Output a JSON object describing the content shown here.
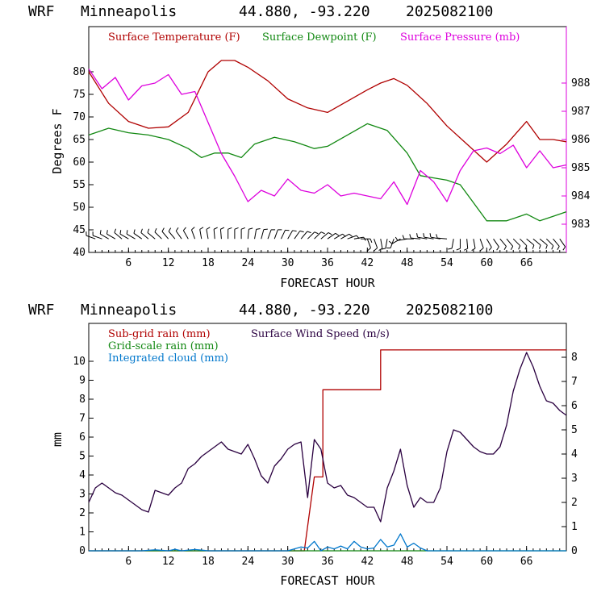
{
  "panel1": {
    "header": {
      "model": "WRF",
      "location": "Minneapolis",
      "coords": "44.880, -93.220",
      "run": "2025082100"
    }
  },
  "panel2": {
    "header": {
      "model": "WRF",
      "location": "Minneapolis",
      "coords": "44.880, -93.220",
      "run": "2025082100"
    }
  },
  "colors": {
    "temperature": "#b00000",
    "dewpoint": "#118811",
    "pressure": "#dd00dd",
    "subgrid": "#b00000",
    "gridscale": "#118811",
    "cloud": "#0077cc",
    "wind": "#2a0040"
  },
  "chart_data": [
    {
      "type": "line",
      "xlabel": "FORECAST HOUR",
      "ylabel": "Degrees F",
      "xlim": [
        0,
        72
      ],
      "ylim": [
        40,
        90
      ],
      "ylim_right": [
        982,
        990
      ],
      "x_ticks": [
        "6",
        "12",
        "18",
        "24",
        "30",
        "36",
        "42",
        "48",
        "54",
        "60",
        "66"
      ],
      "y_ticks": [
        "40",
        "45",
        "50",
        "55",
        "60",
        "65",
        "70",
        "75",
        "80"
      ],
      "y_ticks_right": [
        "983",
        "984",
        "985",
        "986",
        "987",
        "988"
      ],
      "series": [
        {
          "name": "Surface Temperature (F)",
          "axis": "left",
          "color": "#b00000",
          "x": [
            0,
            3,
            6,
            9,
            12,
            15,
            18,
            20,
            22,
            24,
            27,
            30,
            33,
            36,
            39,
            42,
            44,
            46,
            48,
            51,
            54,
            57,
            60,
            63,
            66,
            68,
            70,
            72
          ],
          "y": [
            80,
            73,
            69,
            67.5,
            67.8,
            71,
            80,
            82.5,
            82.5,
            81,
            78,
            74,
            72,
            71,
            73.5,
            76,
            77.5,
            78.5,
            77,
            73,
            68,
            64,
            60,
            64,
            69,
            65,
            65,
            64.5
          ]
        },
        {
          "name": "Surface Dewpoint (F)",
          "axis": "left",
          "color": "#118811",
          "x": [
            0,
            3,
            6,
            9,
            12,
            15,
            17,
            19,
            21,
            23,
            25,
            28,
            31,
            34,
            36,
            39,
            42,
            45,
            48,
            50,
            52,
            54,
            56,
            58,
            60,
            63,
            66,
            68,
            70,
            72
          ],
          "y": [
            66,
            67.5,
            66.5,
            66,
            65,
            63,
            61,
            62,
            62,
            61,
            64,
            65.5,
            64.5,
            63,
            63.5,
            66,
            68.5,
            67,
            62,
            57,
            56.5,
            56,
            55,
            51,
            47,
            47,
            48.5,
            47,
            48,
            49
          ]
        },
        {
          "name": "Surface Pressure (mb)",
          "axis": "right",
          "color": "#dd00dd",
          "x": [
            0,
            2,
            4,
            6,
            8,
            10,
            12,
            14,
            16,
            18,
            20,
            22,
            24,
            26,
            28,
            30,
            32,
            34,
            36,
            38,
            40,
            42,
            44,
            46,
            48,
            50,
            52,
            54,
            56,
            58,
            60,
            62,
            64,
            66,
            68,
            70,
            72
          ],
          "y": [
            988.5,
            987.8,
            988.2,
            987.4,
            987.9,
            988,
            988.3,
            987.6,
            987.7,
            986.6,
            985.5,
            984.7,
            983.8,
            984.2,
            984.0,
            984.6,
            984.2,
            984.1,
            984.4,
            984.0,
            984.1,
            984.0,
            983.9,
            984.5,
            983.7,
            984.9,
            984.5,
            983.8,
            984.9,
            985.6,
            985.7,
            985.5,
            985.8,
            985.0,
            985.6,
            985.0,
            985.1
          ]
        },
        {
          "name": "Surface Wind Barbs",
          "axis": "left",
          "color": "#000000",
          "x": [
            1,
            2,
            3,
            4,
            5,
            6,
            7,
            8,
            9,
            10,
            11,
            12,
            13,
            14,
            15,
            16,
            17,
            18,
            19,
            20,
            21,
            22,
            23,
            24,
            25,
            26,
            27,
            28,
            29,
            30,
            31,
            32,
            33,
            34,
            35,
            36,
            37,
            38,
            39,
            40,
            41,
            42,
            43,
            44,
            45,
            46,
            47,
            48,
            49,
            50,
            51,
            52,
            53,
            54,
            55,
            56,
            57,
            58,
            59,
            60,
            61,
            62,
            63,
            64,
            65,
            66,
            67,
            68,
            69,
            70,
            71
          ],
          "y": [
            43,
            43,
            43,
            43,
            43,
            43,
            43,
            43,
            43,
            43,
            43,
            43,
            43,
            43,
            43,
            43,
            43,
            43,
            43,
            43,
            43,
            43,
            43,
            43,
            43,
            43,
            43,
            43,
            43,
            43,
            43,
            43,
            43,
            43,
            43,
            43,
            43,
            43,
            43,
            43,
            43,
            43,
            43,
            43,
            43,
            43,
            43,
            43,
            43,
            43,
            43,
            43,
            43,
            43,
            43,
            43,
            43,
            43,
            43,
            43,
            43,
            43,
            43,
            43,
            43,
            43,
            43,
            43,
            43,
            43,
            43
          ],
          "direction_deg": [
            290,
            290,
            300,
            300,
            310,
            300,
            300,
            305,
            310,
            310,
            315,
            320,
            320,
            325,
            330,
            340,
            350,
            350,
            355,
            355,
            0,
            0,
            0,
            5,
            10,
            15,
            20,
            20,
            25,
            30,
            35,
            40,
            45,
            45,
            50,
            55,
            60,
            60,
            70,
            80,
            90,
            160,
            160,
            170,
            190,
            200,
            240,
            260,
            270,
            275,
            280,
            280,
            280,
            275,
            190,
            180,
            175,
            170,
            160,
            150,
            145,
            140,
            140,
            135,
            135,
            130,
            130,
            130,
            135,
            140,
            145
          ]
        }
      ]
    },
    {
      "type": "line",
      "xlabel": "FORECAST HOUR",
      "ylabel": "mm",
      "xlim": [
        0,
        72
      ],
      "ylim": [
        0,
        12
      ],
      "ylim_right": [
        0,
        9.4
      ],
      "x_ticks": [
        "6",
        "12",
        "18",
        "24",
        "30",
        "36",
        "42",
        "48",
        "54",
        "60",
        "66"
      ],
      "y_ticks": [
        "0",
        "1",
        "2",
        "3",
        "4",
        "5",
        "6",
        "7",
        "8",
        "9",
        "10"
      ],
      "y_ticks_right": [
        "0",
        "1",
        "2",
        "3",
        "4",
        "5",
        "6",
        "7",
        "8"
      ],
      "series": [
        {
          "name": "Sub-grid rain (mm)",
          "axis": "left",
          "color": "#b00000",
          "x": [
            0,
            32.5,
            34,
            34,
            35.3,
            35.3,
            44,
            44,
            72
          ],
          "y": [
            0,
            0,
            3.9,
            3.9,
            3.9,
            8.5,
            8.5,
            10.6,
            10.6
          ]
        },
        {
          "name": "Grid-scale rain (mm)",
          "axis": "left",
          "color": "#118811",
          "x": [
            0,
            72
          ],
          "y": [
            0,
            0
          ]
        },
        {
          "name": "Integrated cloud (mm)",
          "axis": "left",
          "color": "#0077cc",
          "x": [
            0,
            8,
            10,
            12,
            13,
            14,
            16,
            18,
            20,
            30,
            32,
            33,
            34,
            35,
            36,
            37,
            38,
            39,
            40,
            41,
            42,
            43,
            44,
            45,
            46,
            47,
            48,
            49,
            50,
            51,
            72
          ],
          "y": [
            0,
            0,
            0.05,
            0,
            0.08,
            0,
            0.07,
            0,
            0,
            0,
            0.2,
            0.15,
            0.5,
            0,
            0.2,
            0.1,
            0.25,
            0.1,
            0.5,
            0.2,
            0.1,
            0.15,
            0.6,
            0.2,
            0.3,
            0.9,
            0.2,
            0.4,
            0.15,
            0,
            0
          ]
        },
        {
          "name": "Surface Wind Speed (m/s)",
          "axis": "right",
          "color": "#2a0040",
          "x": [
            0,
            1,
            2,
            3,
            4,
            5,
            6,
            7,
            8,
            9,
            10,
            11,
            12,
            13,
            14,
            15,
            16,
            17,
            18,
            19,
            20,
            21,
            22,
            23,
            24,
            25,
            26,
            27,
            28,
            29,
            30,
            31,
            32,
            33,
            34,
            35,
            36,
            37,
            38,
            39,
            40,
            41,
            42,
            43,
            44,
            45,
            46,
            47,
            48,
            49,
            50,
            51,
            52,
            53,
            54,
            55,
            56,
            57,
            58,
            59,
            60,
            61,
            62,
            63,
            64,
            65,
            66,
            67,
            68,
            69,
            70,
            71,
            72
          ],
          "y": [
            2.0,
            2.6,
            2.8,
            2.6,
            2.4,
            2.3,
            2.1,
            1.9,
            1.7,
            1.6,
            2.5,
            2.4,
            2.3,
            2.6,
            2.8,
            3.4,
            3.6,
            3.9,
            4.1,
            4.3,
            4.5,
            4.2,
            4.1,
            4.0,
            4.4,
            3.8,
            3.1,
            2.8,
            3.5,
            3.8,
            4.2,
            4.4,
            4.5,
            2.2,
            4.6,
            4.2,
            2.8,
            2.6,
            2.7,
            2.3,
            2.2,
            2.0,
            1.8,
            1.8,
            1.2,
            2.6,
            3.3,
            4.2,
            2.7,
            1.8,
            2.2,
            2.0,
            2.0,
            2.6,
            4.1,
            5.0,
            4.9,
            4.6,
            4.3,
            4.1,
            4.0,
            4.0,
            4.3,
            5.2,
            6.6,
            7.5,
            8.2,
            7.6,
            6.8,
            6.2,
            6.1,
            5.8,
            5.6
          ]
        }
      ]
    }
  ]
}
